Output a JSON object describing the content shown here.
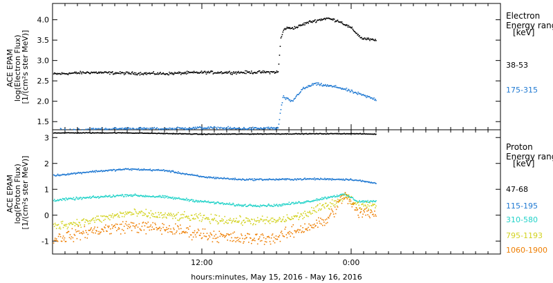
{
  "chart_data": [
    {
      "type": "scatter",
      "panel": "electron",
      "ylabel": [
        "ACE EPAM",
        "log(Electron Flux)",
        "[1/(cm²s ster MeV)]"
      ],
      "ylim": [
        1.3,
        4.4
      ],
      "yticks": [
        "1.5",
        "2.0",
        "2.5",
        "3.0",
        "3.5",
        "4.0"
      ],
      "ytick_values": [
        1.5,
        2.0,
        2.5,
        3.0,
        3.5,
        4.0
      ],
      "legend_title": [
        "Electron",
        "Energy range",
        "[keV]"
      ],
      "legend_placement": "right",
      "x_unit": "hours since 2016-05-15 00:00",
      "series": [
        {
          "name": "38-53",
          "color": "#000000",
          "profile": [
            [
              0,
              2.68
            ],
            [
              3,
              2.72
            ],
            [
              6,
              2.7
            ],
            [
              9,
              2.69
            ],
            [
              12,
              2.72
            ],
            [
              15,
              2.72
            ],
            [
              18.1,
              2.73
            ],
            [
              18.3,
              3.55
            ],
            [
              18.6,
              3.8
            ],
            [
              19.5,
              3.82
            ],
            [
              20.5,
              3.95
            ],
            [
              22,
              4.05
            ],
            [
              23,
              3.98
            ],
            [
              24,
              3.8
            ],
            [
              24.8,
              3.56
            ],
            [
              26,
              3.5
            ]
          ],
          "noise": 0.05
        },
        {
          "name": "175-315",
          "color": "#1e78d2",
          "profile": [
            [
              0,
              1.3
            ],
            [
              3,
              1.32
            ],
            [
              6,
              1.34
            ],
            [
              9,
              1.33
            ],
            [
              12,
              1.36
            ],
            [
              15,
              1.34
            ],
            [
              18.1,
              1.35
            ],
            [
              18.3,
              1.8
            ],
            [
              18.5,
              2.12
            ],
            [
              19.2,
              2.0
            ],
            [
              20,
              2.3
            ],
            [
              21,
              2.44
            ],
            [
              23,
              2.35
            ],
            [
              24.5,
              2.2
            ],
            [
              26,
              2.05
            ]
          ],
          "noise": 0.05
        }
      ]
    },
    {
      "type": "scatter",
      "panel": "proton",
      "ylabel": [
        "ACE EPAM",
        "log(Proton Flux)",
        "[1/(cm²s ster MeV)]"
      ],
      "ylim": [
        -1.5,
        3.3
      ],
      "yticks": [
        "-1",
        "0",
        "1",
        "2",
        "3"
      ],
      "ytick_values": [
        -1,
        0,
        1,
        2,
        3
      ],
      "legend_title": [
        "Proton",
        "Energy range",
        "[keV]"
      ],
      "legend_placement": "right",
      "x_unit": "hours since 2016-05-15 00:00",
      "series": [
        {
          "name": "47-68",
          "color": "#000000",
          "profile": [
            [
              0,
              3.2
            ],
            [
              6,
              3.2
            ],
            [
              12,
              3.15
            ],
            [
              18,
              3.16
            ],
            [
              24,
              3.17
            ],
            [
              26,
              3.15
            ]
          ],
          "noise": 0.02
        },
        {
          "name": "115-195",
          "color": "#1e78d2",
          "profile": [
            [
              0,
              1.55
            ],
            [
              3,
              1.7
            ],
            [
              6,
              1.8
            ],
            [
              9,
              1.75
            ],
            [
              12,
              1.5
            ],
            [
              15,
              1.4
            ],
            [
              18,
              1.4
            ],
            [
              21,
              1.42
            ],
            [
              24,
              1.4
            ],
            [
              26,
              1.25
            ]
          ],
          "noise": 0.05
        },
        {
          "name": "310-580",
          "color": "#20d2c8",
          "profile": [
            [
              0,
              0.6
            ],
            [
              3,
              0.7
            ],
            [
              6,
              0.8
            ],
            [
              9,
              0.72
            ],
            [
              12,
              0.55
            ],
            [
              15,
              0.4
            ],
            [
              18,
              0.4
            ],
            [
              20.5,
              0.55
            ],
            [
              22.5,
              0.75
            ],
            [
              23.5,
              0.82
            ],
            [
              24.5,
              0.55
            ],
            [
              26,
              0.55
            ]
          ],
          "noise": 0.07
        },
        {
          "name": "795-1193",
          "color": "#d2d21e",
          "profile": [
            [
              0,
              -0.4
            ],
            [
              3,
              -0.2
            ],
            [
              6,
              0.1
            ],
            [
              9,
              0.0
            ],
            [
              12,
              -0.1
            ],
            [
              15,
              -0.2
            ],
            [
              18,
              -0.2
            ],
            [
              20,
              0.0
            ],
            [
              22,
              0.4
            ],
            [
              23,
              0.6
            ],
            [
              23.5,
              0.75
            ],
            [
              24.5,
              0.4
            ],
            [
              26,
              0.4
            ]
          ],
          "noise": 0.15
        },
        {
          "name": "1060-1900",
          "color": "#ee7d00",
          "profile": [
            [
              0,
              -0.9
            ],
            [
              3,
              -0.6
            ],
            [
              6,
              -0.4
            ],
            [
              9,
              -0.5
            ],
            [
              12,
              -0.7
            ],
            [
              15,
              -0.9
            ],
            [
              18,
              -0.85
            ],
            [
              20,
              -0.5
            ],
            [
              22,
              -0.2
            ],
            [
              23,
              0.5
            ],
            [
              23.5,
              0.8
            ],
            [
              24.5,
              0.1
            ],
            [
              26,
              0.15
            ]
          ],
          "noise": 0.22
        }
      ]
    }
  ],
  "x_axis": {
    "xlim": [
      0,
      36
    ],
    "ticks": [
      {
        "x": 12,
        "label": "12:00"
      },
      {
        "x": 24,
        "label": "0:00"
      }
    ],
    "minor_step": 1,
    "xlabel": "hours:minutes, May 15, 2016 - May 16, 2016",
    "data_end": 26
  }
}
